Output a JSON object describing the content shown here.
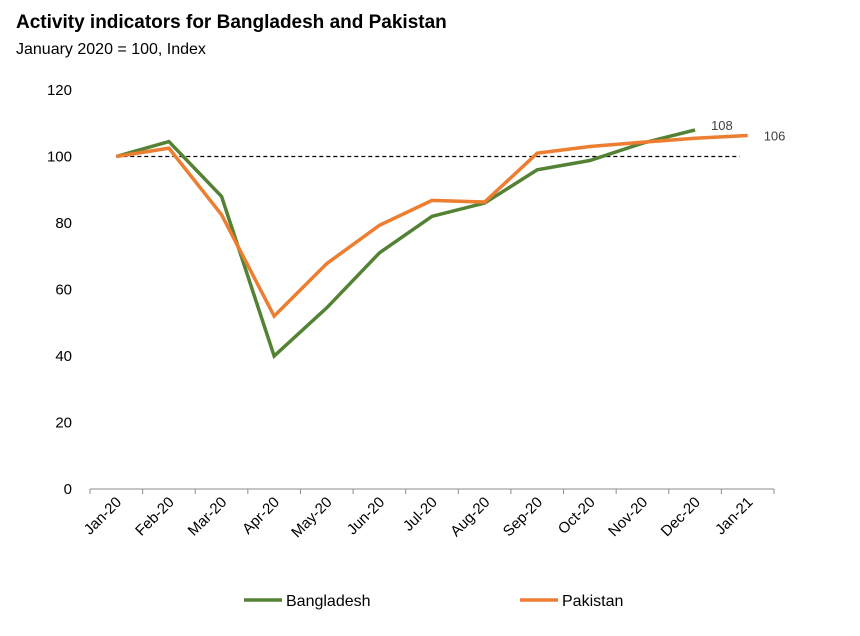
{
  "chart_data": {
    "type": "line",
    "title": "Activity indicators for Bangladesh and Pakistan",
    "subtitle": "January 2020 = 100, Index",
    "categories": [
      "Jan-20",
      "Feb-20",
      "Mar-20",
      "Apr-20",
      "May-20",
      "Jun-20",
      "Jul-20",
      "Aug-20",
      "Sep-20",
      "Oct-20",
      "Nov-20",
      "Dec-20",
      "Jan-21"
    ],
    "ylim": [
      0,
      120
    ],
    "yticks": [
      "0",
      "20",
      "40",
      "60",
      "80",
      "100",
      "120"
    ],
    "reference_line": 100,
    "legend_position": "bottom",
    "grid": false,
    "series": [
      {
        "name": "Bangladesh",
        "color": "#548235",
        "values": [
          100,
          104.5,
          88,
          40,
          54.5,
          71,
          82,
          86,
          96,
          98.8,
          104,
          108,
          null
        ],
        "end_label": "108"
      },
      {
        "name": "Pakistan",
        "color": "#ED7D31",
        "values": [
          100,
          102.5,
          82.5,
          52,
          67.8,
          79.3,
          86.8,
          86.3,
          101,
          103,
          104.3,
          105.5,
          106.3
        ],
        "end_label": "106"
      }
    ]
  }
}
